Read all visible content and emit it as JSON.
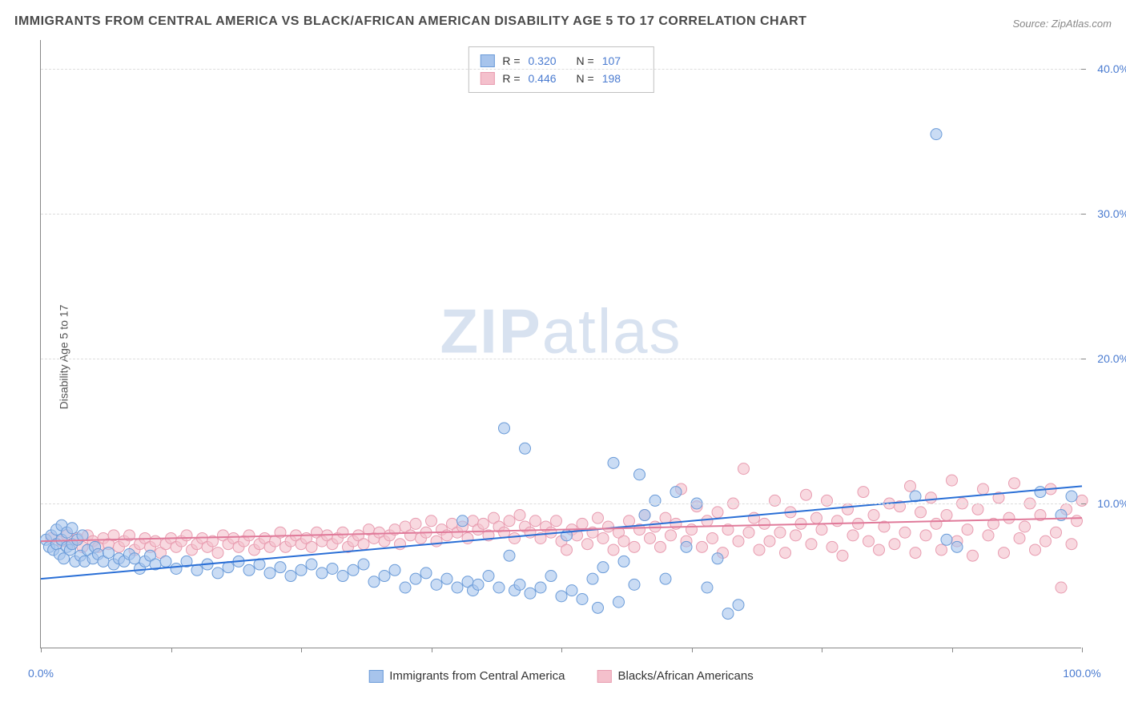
{
  "title": "IMMIGRANTS FROM CENTRAL AMERICA VS BLACK/AFRICAN AMERICAN DISABILITY AGE 5 TO 17 CORRELATION CHART",
  "source_prefix": "Source: ",
  "source_name": "ZipAtlas.com",
  "watermark_bold": "ZIP",
  "watermark_light": "atlas",
  "chart": {
    "type": "scatter",
    "xlim": [
      0,
      100
    ],
    "ylim": [
      0,
      42
    ],
    "y_ticks": [
      10,
      20,
      30,
      40
    ],
    "y_tick_labels": [
      "10.0%",
      "20.0%",
      "30.0%",
      "40.0%"
    ],
    "x_ticks": [
      0,
      12.5,
      25,
      37.5,
      50,
      62.5,
      75,
      87.5,
      100
    ],
    "x_tick_labels_show": [
      0,
      100
    ],
    "x_tick_labels": {
      "0": "0.0%",
      "100": "100.0%"
    },
    "ylabel": "Disability Age 5 to 17",
    "background_color": "#ffffff",
    "grid_color": "#dddddd",
    "axis_color": "#888888",
    "axis_label_color": "#4a7bd0",
    "series": [
      {
        "name": "Immigrants from Central America",
        "color_fill": "#a7c4ec",
        "color_stroke": "#6a9bd8",
        "marker_radius": 7,
        "marker_opacity": 0.6,
        "r_value": "0.320",
        "n_value": "107",
        "trend": {
          "x1": 0,
          "y1": 4.8,
          "x2": 100,
          "y2": 11.2,
          "color": "#2a6fd6",
          "width": 2
        },
        "points": [
          [
            0.5,
            7.5
          ],
          [
            0.8,
            7.0
          ],
          [
            1.0,
            7.8
          ],
          [
            1.2,
            6.8
          ],
          [
            1.5,
            7.2
          ],
          [
            1.5,
            8.2
          ],
          [
            1.8,
            6.5
          ],
          [
            2.0,
            7.5
          ],
          [
            2.0,
            8.5
          ],
          [
            2.2,
            6.2
          ],
          [
            2.5,
            7.0
          ],
          [
            2.5,
            8.0
          ],
          [
            2.8,
            6.8
          ],
          [
            3.0,
            7.2
          ],
          [
            3.0,
            8.3
          ],
          [
            3.3,
            6.0
          ],
          [
            3.5,
            7.5
          ],
          [
            3.8,
            6.4
          ],
          [
            4.0,
            7.8
          ],
          [
            4.2,
            6.0
          ],
          [
            4.5,
            6.8
          ],
          [
            5.0,
            6.2
          ],
          [
            5.2,
            7.0
          ],
          [
            5.5,
            6.5
          ],
          [
            6.0,
            6.0
          ],
          [
            6.5,
            6.6
          ],
          [
            7.0,
            5.8
          ],
          [
            7.5,
            6.2
          ],
          [
            8.0,
            6.0
          ],
          [
            8.5,
            6.5
          ],
          [
            9.0,
            6.2
          ],
          [
            9.5,
            5.5
          ],
          [
            10,
            6.0
          ],
          [
            10.5,
            6.4
          ],
          [
            11,
            5.8
          ],
          [
            12,
            6.0
          ],
          [
            13,
            5.5
          ],
          [
            14,
            6.0
          ],
          [
            15,
            5.4
          ],
          [
            16,
            5.8
          ],
          [
            17,
            5.2
          ],
          [
            18,
            5.6
          ],
          [
            19,
            6.0
          ],
          [
            20,
            5.4
          ],
          [
            21,
            5.8
          ],
          [
            22,
            5.2
          ],
          [
            23,
            5.6
          ],
          [
            24,
            5.0
          ],
          [
            25,
            5.4
          ],
          [
            26,
            5.8
          ],
          [
            27,
            5.2
          ],
          [
            28,
            5.5
          ],
          [
            29,
            5.0
          ],
          [
            30,
            5.4
          ],
          [
            31,
            5.8
          ],
          [
            32,
            4.6
          ],
          [
            33,
            5.0
          ],
          [
            34,
            5.4
          ],
          [
            35,
            4.2
          ],
          [
            36,
            4.8
          ],
          [
            37,
            5.2
          ],
          [
            38,
            4.4
          ],
          [
            39,
            4.8
          ],
          [
            40,
            4.2
          ],
          [
            40.5,
            8.8
          ],
          [
            41,
            4.6
          ],
          [
            41.5,
            4.0
          ],
          [
            42,
            4.4
          ],
          [
            43,
            5.0
          ],
          [
            44,
            4.2
          ],
          [
            44.5,
            15.2
          ],
          [
            45,
            6.4
          ],
          [
            45.5,
            4.0
          ],
          [
            46,
            4.4
          ],
          [
            46.5,
            13.8
          ],
          [
            47,
            3.8
          ],
          [
            48,
            4.2
          ],
          [
            49,
            5.0
          ],
          [
            50,
            3.6
          ],
          [
            50.5,
            7.8
          ],
          [
            51,
            4.0
          ],
          [
            52,
            3.4
          ],
          [
            53,
            4.8
          ],
          [
            53.5,
            2.8
          ],
          [
            54,
            5.6
          ],
          [
            55,
            12.8
          ],
          [
            55.5,
            3.2
          ],
          [
            56,
            6.0
          ],
          [
            57,
            4.4
          ],
          [
            57.5,
            12.0
          ],
          [
            58,
            9.2
          ],
          [
            59,
            10.2
          ],
          [
            60,
            4.8
          ],
          [
            61,
            10.8
          ],
          [
            62,
            7.0
          ],
          [
            63,
            10.0
          ],
          [
            64,
            4.2
          ],
          [
            65,
            6.2
          ],
          [
            66,
            2.4
          ],
          [
            67,
            3.0
          ],
          [
            84,
            10.5
          ],
          [
            86,
            35.5
          ],
          [
            87,
            7.5
          ],
          [
            88,
            7.0
          ],
          [
            96,
            10.8
          ],
          [
            98,
            9.2
          ],
          [
            99,
            10.5
          ]
        ]
      },
      {
        "name": "Blacks/African Americans",
        "color_fill": "#f4c0cc",
        "color_stroke": "#e89cb0",
        "marker_radius": 7,
        "marker_opacity": 0.6,
        "r_value": "0.446",
        "n_value": "198",
        "trend": {
          "x1": 0,
          "y1": 7.4,
          "x2": 100,
          "y2": 9.0,
          "color": "#e07a9a",
          "width": 2
        },
        "points": [
          [
            1,
            7.6
          ],
          [
            2,
            7.4
          ],
          [
            2.5,
            7.8
          ],
          [
            3,
            7.2
          ],
          [
            3.5,
            7.6
          ],
          [
            4,
            7.0
          ],
          [
            4.5,
            7.8
          ],
          [
            5,
            7.4
          ],
          [
            5.5,
            7.0
          ],
          [
            6,
            7.6
          ],
          [
            6.5,
            7.2
          ],
          [
            7,
            7.8
          ],
          [
            7.5,
            7.0
          ],
          [
            8,
            7.4
          ],
          [
            8.5,
            7.8
          ],
          [
            9,
            6.8
          ],
          [
            9.5,
            7.2
          ],
          [
            10,
            7.6
          ],
          [
            10.5,
            7.0
          ],
          [
            11,
            7.4
          ],
          [
            11.5,
            6.6
          ],
          [
            12,
            7.2
          ],
          [
            12.5,
            7.6
          ],
          [
            13,
            7.0
          ],
          [
            13.5,
            7.4
          ],
          [
            14,
            7.8
          ],
          [
            14.5,
            6.8
          ],
          [
            15,
            7.2
          ],
          [
            15.5,
            7.6
          ],
          [
            16,
            7.0
          ],
          [
            16.5,
            7.4
          ],
          [
            17,
            6.6
          ],
          [
            17.5,
            7.8
          ],
          [
            18,
            7.2
          ],
          [
            18.5,
            7.6
          ],
          [
            19,
            7.0
          ],
          [
            19.5,
            7.4
          ],
          [
            20,
            7.8
          ],
          [
            20.5,
            6.8
          ],
          [
            21,
            7.2
          ],
          [
            21.5,
            7.6
          ],
          [
            22,
            7.0
          ],
          [
            22.5,
            7.4
          ],
          [
            23,
            8.0
          ],
          [
            23.5,
            7.0
          ],
          [
            24,
            7.4
          ],
          [
            24.5,
            7.8
          ],
          [
            25,
            7.2
          ],
          [
            25.5,
            7.6
          ],
          [
            26,
            7.0
          ],
          [
            26.5,
            8.0
          ],
          [
            27,
            7.4
          ],
          [
            27.5,
            7.8
          ],
          [
            28,
            7.2
          ],
          [
            28.5,
            7.6
          ],
          [
            29,
            8.0
          ],
          [
            29.5,
            7.0
          ],
          [
            30,
            7.4
          ],
          [
            30.5,
            7.8
          ],
          [
            31,
            7.2
          ],
          [
            31.5,
            8.2
          ],
          [
            32,
            7.6
          ],
          [
            32.5,
            8.0
          ],
          [
            33,
            7.4
          ],
          [
            33.5,
            7.8
          ],
          [
            34,
            8.2
          ],
          [
            34.5,
            7.2
          ],
          [
            35,
            8.4
          ],
          [
            35.5,
            7.8
          ],
          [
            36,
            8.6
          ],
          [
            36.5,
            7.6
          ],
          [
            37,
            8.0
          ],
          [
            37.5,
            8.8
          ],
          [
            38,
            7.4
          ],
          [
            38.5,
            8.2
          ],
          [
            39,
            7.8
          ],
          [
            39.5,
            8.6
          ],
          [
            40,
            8.0
          ],
          [
            40.5,
            8.4
          ],
          [
            41,
            7.6
          ],
          [
            41.5,
            8.8
          ],
          [
            42,
            8.2
          ],
          [
            42.5,
            8.6
          ],
          [
            43,
            7.8
          ],
          [
            43.5,
            9.0
          ],
          [
            44,
            8.4
          ],
          [
            44.5,
            8.0
          ],
          [
            45,
            8.8
          ],
          [
            45.5,
            7.6
          ],
          [
            46,
            9.2
          ],
          [
            46.5,
            8.4
          ],
          [
            47,
            8.0
          ],
          [
            47.5,
            8.8
          ],
          [
            48,
            7.6
          ],
          [
            48.5,
            8.4
          ],
          [
            49,
            8.0
          ],
          [
            49.5,
            8.8
          ],
          [
            50,
            7.4
          ],
          [
            50.5,
            6.8
          ],
          [
            51,
            8.2
          ],
          [
            51.5,
            7.8
          ],
          [
            52,
            8.6
          ],
          [
            52.5,
            7.2
          ],
          [
            53,
            8.0
          ],
          [
            53.5,
            9.0
          ],
          [
            54,
            7.6
          ],
          [
            54.5,
            8.4
          ],
          [
            55,
            6.8
          ],
          [
            55.5,
            8.0
          ],
          [
            56,
            7.4
          ],
          [
            56.5,
            8.8
          ],
          [
            57,
            7.0
          ],
          [
            57.5,
            8.2
          ],
          [
            58,
            9.2
          ],
          [
            58.5,
            7.6
          ],
          [
            59,
            8.4
          ],
          [
            59.5,
            7.0
          ],
          [
            60,
            9.0
          ],
          [
            60.5,
            7.8
          ],
          [
            61,
            8.6
          ],
          [
            61.5,
            11.0
          ],
          [
            62,
            7.4
          ],
          [
            62.5,
            8.2
          ],
          [
            63,
            9.8
          ],
          [
            63.5,
            7.0
          ],
          [
            64,
            8.8
          ],
          [
            64.5,
            7.6
          ],
          [
            65,
            9.4
          ],
          [
            65.5,
            6.6
          ],
          [
            66,
            8.2
          ],
          [
            66.5,
            10.0
          ],
          [
            67,
            7.4
          ],
          [
            67.5,
            12.4
          ],
          [
            68,
            8.0
          ],
          [
            68.5,
            9.0
          ],
          [
            69,
            6.8
          ],
          [
            69.5,
            8.6
          ],
          [
            70,
            7.4
          ],
          [
            70.5,
            10.2
          ],
          [
            71,
            8.0
          ],
          [
            71.5,
            6.6
          ],
          [
            72,
            9.4
          ],
          [
            72.5,
            7.8
          ],
          [
            73,
            8.6
          ],
          [
            73.5,
            10.6
          ],
          [
            74,
            7.2
          ],
          [
            74.5,
            9.0
          ],
          [
            75,
            8.2
          ],
          [
            75.5,
            10.2
          ],
          [
            76,
            7.0
          ],
          [
            76.5,
            8.8
          ],
          [
            77,
            6.4
          ],
          [
            77.5,
            9.6
          ],
          [
            78,
            7.8
          ],
          [
            78.5,
            8.6
          ],
          [
            79,
            10.8
          ],
          [
            79.5,
            7.4
          ],
          [
            80,
            9.2
          ],
          [
            80.5,
            6.8
          ],
          [
            81,
            8.4
          ],
          [
            81.5,
            10.0
          ],
          [
            82,
            7.2
          ],
          [
            82.5,
            9.8
          ],
          [
            83,
            8.0
          ],
          [
            83.5,
            11.2
          ],
          [
            84,
            6.6
          ],
          [
            84.5,
            9.4
          ],
          [
            85,
            7.8
          ],
          [
            85.5,
            10.4
          ],
          [
            86,
            8.6
          ],
          [
            86.5,
            6.8
          ],
          [
            87,
            9.2
          ],
          [
            87.5,
            11.6
          ],
          [
            88,
            7.4
          ],
          [
            88.5,
            10.0
          ],
          [
            89,
            8.2
          ],
          [
            89.5,
            6.4
          ],
          [
            90,
            9.6
          ],
          [
            90.5,
            11.0
          ],
          [
            91,
            7.8
          ],
          [
            91.5,
            8.6
          ],
          [
            92,
            10.4
          ],
          [
            92.5,
            6.6
          ],
          [
            93,
            9.0
          ],
          [
            93.5,
            11.4
          ],
          [
            94,
            7.6
          ],
          [
            94.5,
            8.4
          ],
          [
            95,
            10.0
          ],
          [
            95.5,
            6.8
          ],
          [
            96,
            9.2
          ],
          [
            96.5,
            7.4
          ],
          [
            97,
            11.0
          ],
          [
            97.5,
            8.0
          ],
          [
            98,
            4.2
          ],
          [
            98.5,
            9.6
          ],
          [
            99,
            7.2
          ],
          [
            99.5,
            8.8
          ],
          [
            100,
            10.2
          ]
        ]
      }
    ]
  },
  "legend_top": {
    "r_label": "R =",
    "n_label": "N ="
  },
  "legend_bottom": {
    "s1_label": "Immigrants from Central America",
    "s2_label": "Blacks/African Americans"
  }
}
